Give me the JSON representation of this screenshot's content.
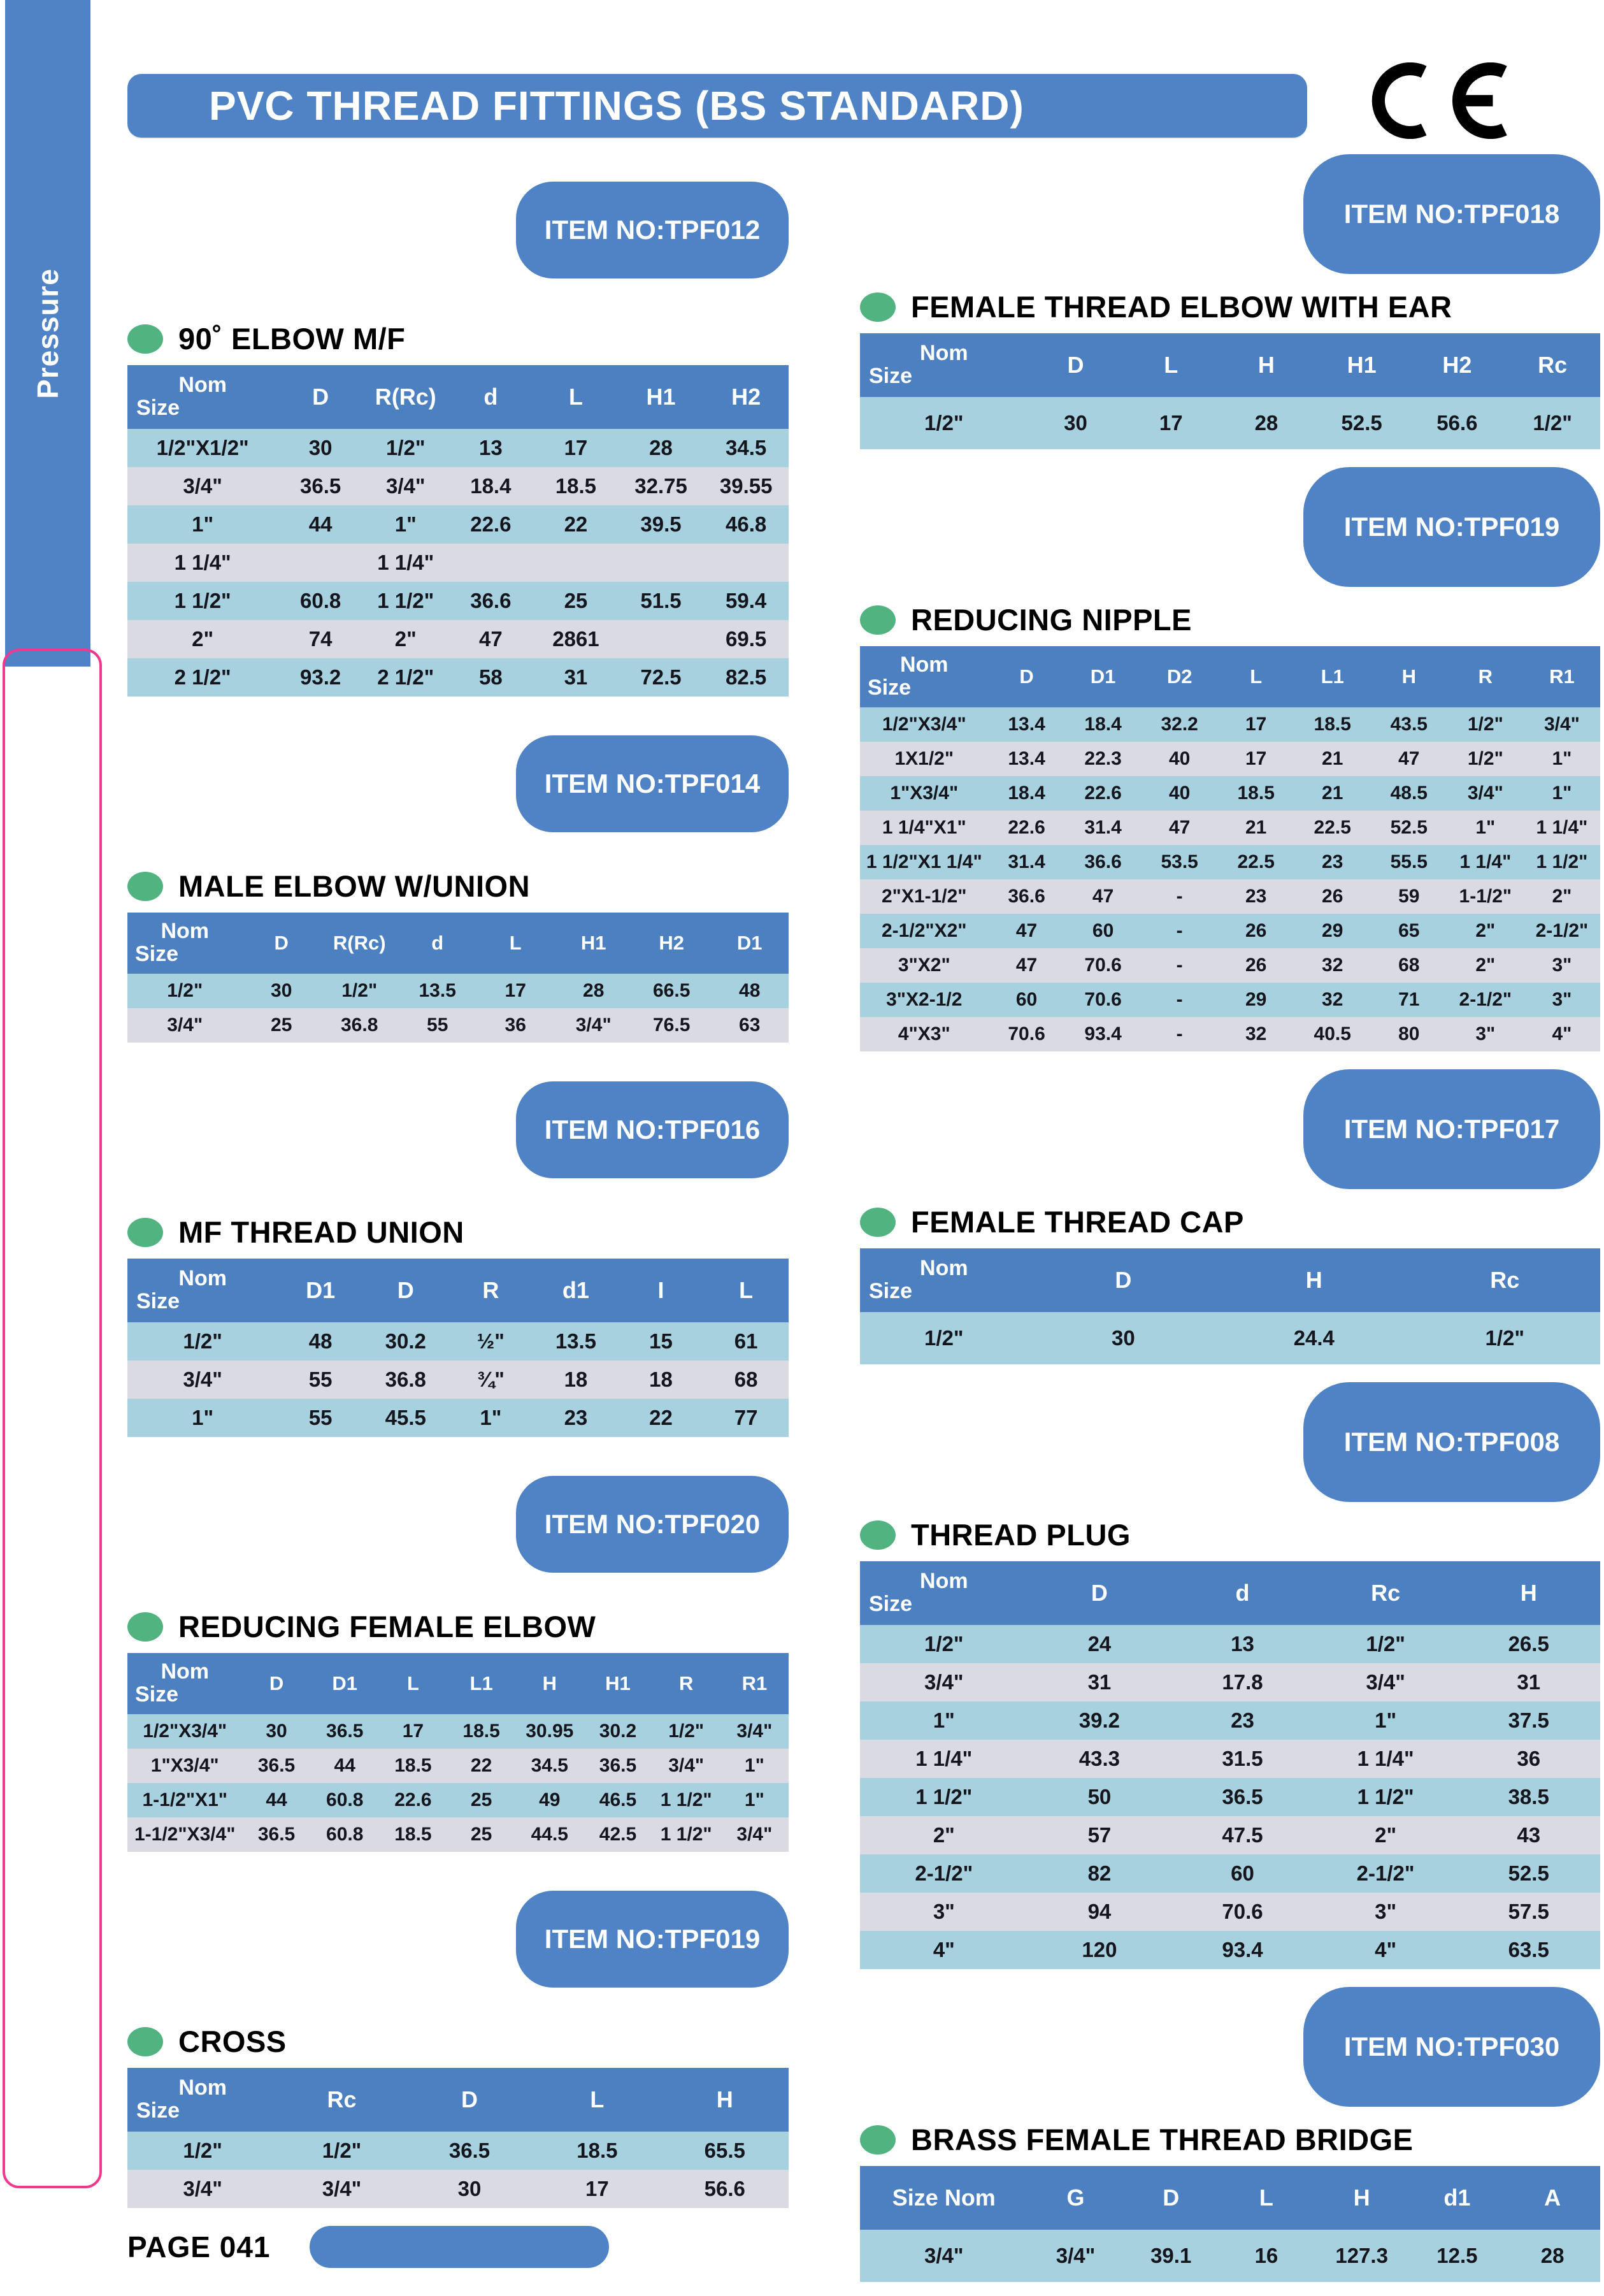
{
  "page": {
    "title": "PVC THREAD FITTINGS (BS STANDARD)",
    "sidebar_label": "Pressure",
    "page_number": "PAGE 041",
    "ce_mark": "CE",
    "colors": {
      "header_blue": "#4f83c5",
      "table_header_blue": "#4d80c0",
      "row_light_blue": "#a7d1de",
      "row_light_gray": "#d9dae2",
      "bullet_green": "#50b380",
      "pink_border": "#f0388f"
    }
  },
  "sections": [
    {
      "item_no": "ITEM NO:TPF012",
      "heading": "90˚ ELBOW M/F",
      "table": {
        "headers": [
          "Nom|Size",
          "D",
          "R(Rc)",
          "d",
          "L",
          "H1",
          "H2"
        ],
        "rows": [
          [
            "1/2\"X1/2\"",
            "30",
            "1/2\"",
            "13",
            "17",
            "28",
            "34.5"
          ],
          [
            "3/4\"",
            "36.5",
            "3/4\"",
            "18.4",
            "18.5",
            "32.75",
            "39.55"
          ],
          [
            "1\"",
            "44",
            "1\"",
            "22.6",
            "22",
            "39.5",
            "46.8"
          ],
          [
            "1 1/4\"",
            "",
            "1 1/4\"",
            "",
            "",
            "",
            ""
          ],
          [
            "1 1/2\"",
            "60.8",
            "1 1/2\"",
            "36.6",
            "25",
            "51.5",
            "59.4"
          ],
          [
            "2\"",
            "74",
            "2\"",
            "47",
            "2861",
            "",
            "69.5"
          ],
          [
            "2 1/2\"",
            "93.2",
            "2 1/2\"",
            "58",
            "31",
            "72.5",
            "82.5"
          ]
        ]
      }
    },
    {
      "item_no": "ITEM NO:TPF014",
      "heading": "MALE ELBOW W/UNION",
      "table": {
        "headers": [
          "Nom|Size",
          "D",
          "R(Rc)",
          "d",
          "L",
          "H1",
          "H2",
          "D1"
        ],
        "rows": [
          [
            "1/2\"",
            "30",
            "1/2\"",
            "13.5",
            "17",
            "28",
            "66.5",
            "48"
          ],
          [
            "3/4\"",
            "25",
            "36.8",
            "55",
            "36",
            "3/4\"",
            "76.5",
            "63"
          ]
        ]
      }
    },
    {
      "item_no": "ITEM NO:TPF016",
      "heading": "MF THREAD UNION",
      "table": {
        "headers": [
          "Nom|Size",
          "D1",
          "D",
          "R",
          "d1",
          "I",
          "L"
        ],
        "rows": [
          [
            "1/2\"",
            "48",
            "30.2",
            "½\"",
            "13.5",
            "15",
            "61"
          ],
          [
            "3/4\"",
            "55",
            "36.8",
            "¾\"",
            "18",
            "18",
            "68"
          ],
          [
            "1\"",
            "55",
            "45.5",
            "1\"",
            "23",
            "22",
            "77"
          ]
        ]
      }
    },
    {
      "item_no": "ITEM NO:TPF020",
      "heading": "REDUCING FEMALE ELBOW",
      "table": {
        "headers": [
          "Nom|Size",
          "D",
          "D1",
          "L",
          "L1",
          "H",
          "H1",
          "R",
          "R1"
        ],
        "rows": [
          [
            "1/2\"X3/4\"",
            "30",
            "36.5",
            "17",
            "18.5",
            "30.95",
            "30.2",
            "1/2\"",
            "3/4\""
          ],
          [
            "1\"X3/4\"",
            "36.5",
            "44",
            "18.5",
            "22",
            "34.5",
            "36.5",
            "3/4\"",
            "1\""
          ],
          [
            "1-1/2\"X1\"",
            "44",
            "60.8",
            "22.6",
            "25",
            "49",
            "46.5",
            "1 1/2\"",
            "1\""
          ],
          [
            "1-1/2\"X3/4\"",
            "36.5",
            "60.8",
            "18.5",
            "25",
            "44.5",
            "42.5",
            "1 1/2\"",
            "3/4\""
          ]
        ]
      }
    },
    {
      "item_no": "ITEM NO:TPF019",
      "heading": "CROSS",
      "table": {
        "headers": [
          "Nom|Size",
          "Rc",
          "D",
          "L",
          "H"
        ],
        "rows": [
          [
            "1/2\"",
            "1/2\"",
            "36.5",
            "18.5",
            "65.5"
          ],
          [
            "3/4\"",
            "3/4\"",
            "30",
            "17",
            "56.6"
          ]
        ]
      }
    },
    {
      "item_no": "ITEM NO:TPF018",
      "heading": "FEMALE THREAD ELBOW WITH EAR",
      "table": {
        "headers": [
          "Nom|Size",
          "D",
          "L",
          "H",
          "H1",
          "H2",
          "Rc"
        ],
        "rows": [
          [
            "1/2\"",
            "30",
            "17",
            "28",
            "52.5",
            "56.6",
            "1/2\""
          ]
        ]
      }
    },
    {
      "item_no": "ITEM NO:TPF019",
      "heading": "REDUCING NIPPLE",
      "table": {
        "headers": [
          "Nom|Size",
          "D",
          "D1",
          "D2",
          "L",
          "L1",
          "H",
          "R",
          "R1"
        ],
        "rows": [
          [
            "1/2\"X3/4\"",
            "13.4",
            "18.4",
            "32.2",
            "17",
            "18.5",
            "43.5",
            "1/2\"",
            "3/4\""
          ],
          [
            "1X1/2\"",
            "13.4",
            "22.3",
            "40",
            "17",
            "21",
            "47",
            "1/2\"",
            "1\""
          ],
          [
            "1\"X3/4\"",
            "18.4",
            "22.6",
            "40",
            "18.5",
            "21",
            "48.5",
            "3/4\"",
            "1\""
          ],
          [
            "1 1/4\"X1\"",
            "22.6",
            "31.4",
            "47",
            "21",
            "22.5",
            "52.5",
            "1\"",
            "1 1/4\""
          ],
          [
            "1 1/2\"X1 1/4\"",
            "31.4",
            "36.6",
            "53.5",
            "22.5",
            "23",
            "55.5",
            "1 1/4\"",
            "1 1/2\""
          ],
          [
            "2\"X1-1/2\"",
            "36.6",
            "47",
            "-",
            "23",
            "26",
            "59",
            "1-1/2\"",
            "2\""
          ],
          [
            "2-1/2\"X2\"",
            "47",
            "60",
            "-",
            "26",
            "29",
            "65",
            "2\"",
            "2-1/2\""
          ],
          [
            "3\"X2\"",
            "47",
            "70.6",
            "-",
            "26",
            "32",
            "68",
            "2\"",
            "3\""
          ],
          [
            "3\"X2-1/2",
            "60",
            "70.6",
            "-",
            "29",
            "32",
            "71",
            "2-1/2\"",
            "3\""
          ],
          [
            "4\"X3\"",
            "70.6",
            "93.4",
            "-",
            "32",
            "40.5",
            "80",
            "3\"",
            "4\""
          ]
        ]
      }
    },
    {
      "item_no": "ITEM NO:TPF017",
      "heading": "FEMALE THREAD CAP",
      "table": {
        "headers": [
          "Nom|Size",
          "D",
          "H",
          "Rc"
        ],
        "rows": [
          [
            "1/2\"",
            "30",
            "24.4",
            "1/2\""
          ]
        ]
      }
    },
    {
      "item_no": "ITEM NO:TPF008",
      "heading": "THREAD PLUG",
      "table": {
        "headers": [
          "Nom|Size",
          "D",
          "d",
          "Rc",
          "H"
        ],
        "rows": [
          [
            "1/2\"",
            "24",
            "13",
            "1/2\"",
            "26.5"
          ],
          [
            "3/4\"",
            "31",
            "17.8",
            "3/4\"",
            "31"
          ],
          [
            "1\"",
            "39.2",
            "23",
            "1\"",
            "37.5"
          ],
          [
            "1 1/4\"",
            "43.3",
            "31.5",
            "1 1/4\"",
            "36"
          ],
          [
            "1 1/2\"",
            "50",
            "36.5",
            "1 1/2\"",
            "38.5"
          ],
          [
            "2\"",
            "57",
            "47.5",
            "2\"",
            "43"
          ],
          [
            "2-1/2\"",
            "82",
            "60",
            "2-1/2\"",
            "52.5"
          ],
          [
            "3\"",
            "94",
            "70.6",
            "3\"",
            "57.5"
          ],
          [
            "4\"",
            "120",
            "93.4",
            "4\"",
            "63.5"
          ]
        ]
      }
    },
    {
      "item_no": "ITEM NO:TPF030",
      "heading": "BRASS FEMALE THREAD BRIDGE",
      "table": {
        "headers": [
          "Size Nom",
          "G",
          "D",
          "L",
          "H",
          "d1",
          "A"
        ],
        "rows": [
          [
            "3/4\"",
            "3/4\"",
            "39.1",
            "16",
            "127.3",
            "12.5",
            "28"
          ]
        ]
      }
    }
  ]
}
